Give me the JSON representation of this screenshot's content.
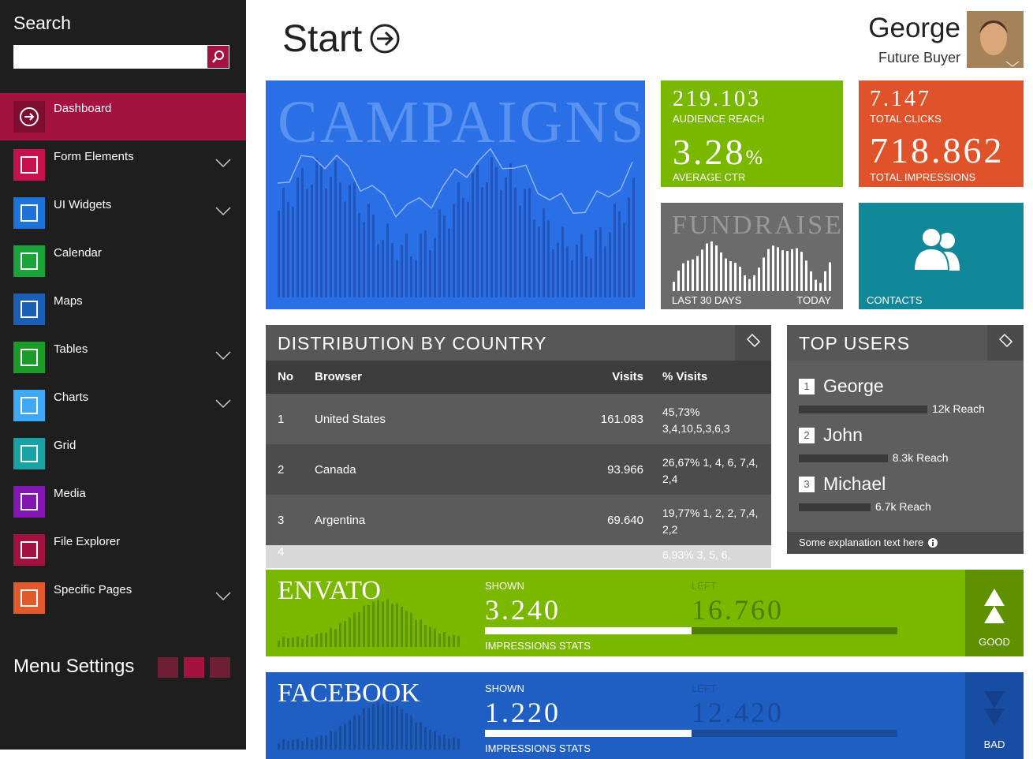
{
  "sidebar": {
    "search_label": "Search",
    "menu": [
      "Dashboard",
      "Form Elements",
      "UI Widgets",
      "Calendar",
      "Maps",
      "Tables",
      "Charts",
      "Grid",
      "Media",
      "File Explorer",
      "Specific Pages"
    ],
    "settings_label": "Menu Settings"
  },
  "header": {
    "title": "Start",
    "user_name": "George",
    "user_role": "Future Buyer"
  },
  "tiles": {
    "campaigns": {
      "title": "CAMPAIGNS"
    },
    "audience": {
      "value": "219.103",
      "label": "AUDIENCE REACH",
      "ctr": "3.28",
      "ctr_unit": "%",
      "ctr_label": "AVERAGE CTR"
    },
    "clicks": {
      "value": "7.147",
      "label": "TOTAL CLICKS",
      "impressions": "718.862",
      "impressions_label": "TOTAL IMPRESSIONS"
    },
    "fundraisers": {
      "title": "FUNDRAISERS",
      "from_label": "LAST 30 DAYS",
      "to_label": "TODAY"
    },
    "contacts": {
      "label": "CONTACTS"
    }
  },
  "distribution": {
    "title": "DISTRIBUTION BY COUNTRY",
    "columns": [
      "No",
      "Browser",
      "Visits",
      "% Visits"
    ],
    "rows": [
      {
        "no": "1",
        "browser": "United States",
        "visits": "161.083",
        "pct": "45,73% 3,4,10,5,3,6,3"
      },
      {
        "no": "2",
        "browser": "Canada",
        "visits": "93.966",
        "pct": "26,67% 1, 4, 6, 7,4, 2,4"
      },
      {
        "no": "3",
        "browser": "Argentina",
        "visits": "69.640",
        "pct": "19,77% 1, 2, 2, 7,4, 2,2"
      },
      {
        "no": "4",
        "pct": "6,93% 3, 5, 6,"
      }
    ]
  },
  "top_users": {
    "title": "TOP USERS",
    "users": [
      {
        "rank": "1",
        "name": "George",
        "reach": 12000,
        "reach_label": "12k Reach"
      },
      {
        "rank": "2",
        "name": "John",
        "reach": 8300,
        "reach_label": "8.3k Reach"
      },
      {
        "rank": "3",
        "name": "Michael",
        "reach": 6700,
        "reach_label": "6.7k Reach"
      }
    ],
    "footer": "Some explanation text here"
  },
  "stripes": [
    {
      "name": "ENVATO",
      "shown_label": "SHOWN",
      "shown": "3.240",
      "left_label": "LEFT",
      "left": "16.760",
      "stats_label": "IMPRESSIONS STATS",
      "verdict": "GOOD"
    },
    {
      "name": "FACEBOOK",
      "shown_label": "SHOWN",
      "shown": "1.220",
      "left_label": "LEFT",
      "left": "12.420",
      "stats_label": "IMPRESSIONS STATS",
      "verdict": "BAD"
    }
  ]
}
